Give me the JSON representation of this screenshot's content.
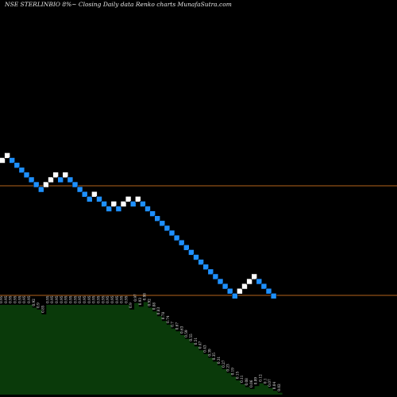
{
  "title": "NSE STERLINBIO 8%~ Closing Daily data  Renko  charts MunafaSutra.com",
  "colors": {
    "background": "#000000",
    "up_brick": "#ffffff",
    "down_brick": "#1e90ff",
    "reference_line": "#b5651d",
    "volume_fill": "#0a3a0a"
  },
  "chart_data": {
    "type": "renko",
    "title": "NSE STERLINBIO 8%~ Closing Daily data  Renko  charts MunafaSutra.com",
    "brick_size_percent": 8,
    "bricks": [
      {
        "dir": "up",
        "level": 0
      },
      {
        "dir": "up",
        "level": 1
      },
      {
        "dir": "down",
        "level": 0
      },
      {
        "dir": "down",
        "level": -1
      },
      {
        "dir": "down",
        "level": -2
      },
      {
        "dir": "down",
        "level": -3
      },
      {
        "dir": "down",
        "level": -4
      },
      {
        "dir": "down",
        "level": -5
      },
      {
        "dir": "down",
        "level": -6
      },
      {
        "dir": "up",
        "level": -5
      },
      {
        "dir": "up",
        "level": -4
      },
      {
        "dir": "up",
        "level": -3
      },
      {
        "dir": "down",
        "level": -4
      },
      {
        "dir": "up",
        "level": -3
      },
      {
        "dir": "down",
        "level": -4
      },
      {
        "dir": "down",
        "level": -5
      },
      {
        "dir": "down",
        "level": -6
      },
      {
        "dir": "down",
        "level": -7
      },
      {
        "dir": "down",
        "level": -8
      },
      {
        "dir": "up",
        "level": -7
      },
      {
        "dir": "down",
        "level": -8
      },
      {
        "dir": "down",
        "level": -9
      },
      {
        "dir": "down",
        "level": -10
      },
      {
        "dir": "up",
        "level": -9
      },
      {
        "dir": "down",
        "level": -10
      },
      {
        "dir": "up",
        "level": -9
      },
      {
        "dir": "up",
        "level": -8
      },
      {
        "dir": "down",
        "level": -9
      },
      {
        "dir": "up",
        "level": -8
      },
      {
        "dir": "down",
        "level": -9
      },
      {
        "dir": "down",
        "level": -10
      },
      {
        "dir": "down",
        "level": -11
      },
      {
        "dir": "down",
        "level": -12
      },
      {
        "dir": "down",
        "level": -13
      },
      {
        "dir": "down",
        "level": -14
      },
      {
        "dir": "down",
        "level": -15
      },
      {
        "dir": "down",
        "level": -16
      },
      {
        "dir": "down",
        "level": -17
      },
      {
        "dir": "down",
        "level": -18
      },
      {
        "dir": "down",
        "level": -19
      },
      {
        "dir": "down",
        "level": -20
      },
      {
        "dir": "down",
        "level": -21
      },
      {
        "dir": "down",
        "level": -22
      },
      {
        "dir": "down",
        "level": -23
      },
      {
        "dir": "down",
        "level": -24
      },
      {
        "dir": "down",
        "level": -25
      },
      {
        "dir": "down",
        "level": -26
      },
      {
        "dir": "down",
        "level": -27
      },
      {
        "dir": "down",
        "level": -28
      },
      {
        "dir": "up",
        "level": -27
      },
      {
        "dir": "up",
        "level": -26
      },
      {
        "dir": "up",
        "level": -25
      },
      {
        "dir": "up",
        "level": -24
      },
      {
        "dir": "down",
        "level": -25
      },
      {
        "dir": "down",
        "level": -26
      },
      {
        "dir": "down",
        "level": -27
      },
      {
        "dir": "down",
        "level": -28
      }
    ],
    "reference_lines": 2,
    "indicator_values": [
      0.95,
      0.95,
      0.95,
      0.95,
      0.95,
      0.95,
      0.95,
      0.92,
      0.9,
      0.85,
      0.95,
      0.95,
      0.95,
      0.95,
      0.95,
      0.95,
      0.95,
      0.95,
      0.95,
      0.95,
      0.95,
      0.95,
      0.95,
      0.95,
      0.95,
      0.95,
      0.95,
      0.95,
      0.9,
      0.97,
      0.93,
      0.98,
      0.92,
      0.88,
      0.83,
      0.78,
      0.74,
      0.7,
      0.67,
      0.63,
      0.59,
      0.55,
      0.51,
      0.47,
      0.43,
      0.39,
      0.35,
      0.31,
      0.27,
      0.23,
      0.19,
      0.15,
      0.11,
      0.08,
      0.06,
      0.09,
      0.12,
      0.1,
      0.07,
      0.04,
      0.02
    ],
    "indicator_labels": [
      "0.95",
      "0.95",
      "0.95",
      "0.95",
      "0.95",
      "0.95",
      "0.95",
      "0.92",
      "0.9",
      "0.85",
      "0.95",
      "0.95",
      "0.95",
      "0.95",
      "0.95",
      "0.95",
      "0.95",
      "0.95",
      "0.95",
      "0.95",
      "0.95",
      "0.95",
      "0.95",
      "0.95",
      "0.95",
      "0.95",
      "0.95",
      "0.95",
      "0.9",
      "0.97",
      "0.93",
      "0.98",
      "0.92",
      "0.88",
      "0.83",
      "0.78",
      "0.74",
      "0.7",
      "0.67",
      "0.63",
      "0.59",
      "0.55",
      "0.51",
      "0.47",
      "0.43",
      "0.39",
      "0.35",
      "0.31",
      "0.27",
      "0.23",
      "0.19",
      "0.15",
      "0.11",
      "0.08",
      "0.06",
      "0.09",
      "0.12",
      "0.1",
      "0.07",
      "0.04",
      "0.02"
    ]
  }
}
